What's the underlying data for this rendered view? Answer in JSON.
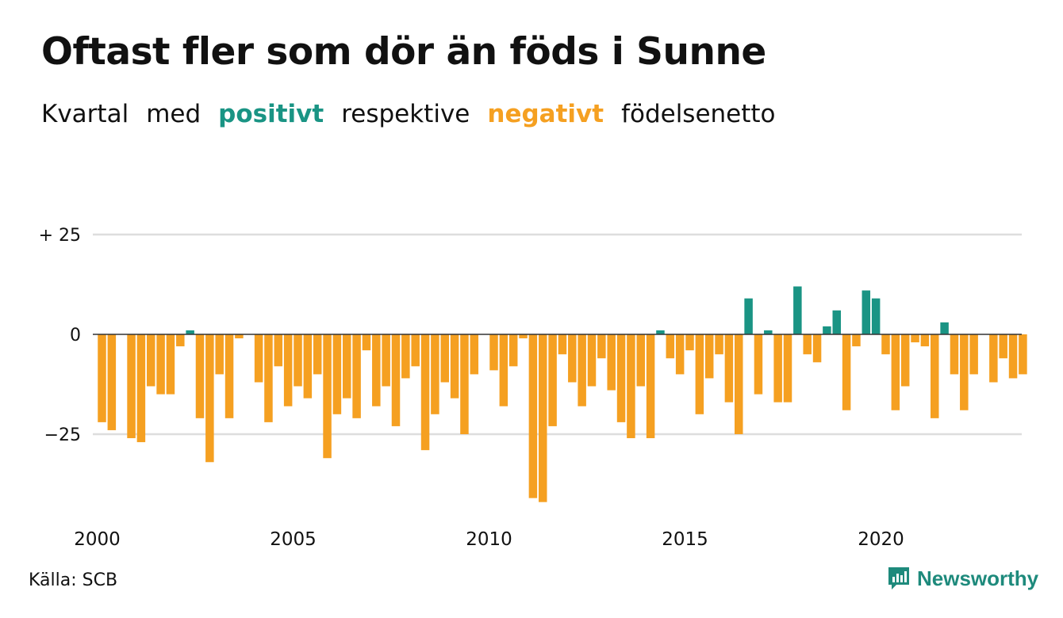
{
  "title": "Oftast fler som dör än föds i Sunne",
  "subtitle": {
    "part1": "Kvartal",
    "part2": "med",
    "positive": "positivt",
    "part3": "respektive",
    "negative": "negativt",
    "part4": "födelsenetto"
  },
  "colors": {
    "positive": "#1a9484",
    "negative": "#f5a021",
    "grid": "#dddddd",
    "zero_line": "#333333"
  },
  "source": "Källa: SCB",
  "brand": {
    "name": "Newsworthy",
    "icon": "newsworthy-logo-icon"
  },
  "chart_data": {
    "type": "bar",
    "start_year": 2000,
    "quarters_per_year": 4,
    "ylim": [
      -42,
      25
    ],
    "yticks": [
      {
        "value": 25,
        "label": "+ 25"
      },
      {
        "value": 0,
        "label": "0"
      },
      {
        "value": -25,
        "label": "−25"
      }
    ],
    "xticks": [
      {
        "year": 2000,
        "label": "2000"
      },
      {
        "year": 2005,
        "label": "2005"
      },
      {
        "year": 2010,
        "label": "2010"
      },
      {
        "year": 2015,
        "label": "2015"
      },
      {
        "year": 2020,
        "label": "2020"
      }
    ],
    "values": [
      -22,
      -24,
      0,
      -26,
      -27,
      -13,
      -15,
      -15,
      -3,
      1,
      -21,
      -32,
      -10,
      -21,
      -1,
      0,
      -12,
      -22,
      -8,
      -18,
      -13,
      -16,
      -10,
      -31,
      -20,
      -16,
      -21,
      -4,
      -18,
      -13,
      -23,
      -11,
      -8,
      -29,
      -20,
      -12,
      -16,
      -25,
      -10,
      0,
      -9,
      -18,
      -8,
      -1,
      -41,
      -42,
      -23,
      -5,
      -12,
      -18,
      -13,
      -6,
      -14,
      -22,
      -26,
      -13,
      -26,
      1,
      -6,
      -10,
      -4,
      -20,
      -11,
      -5,
      -17,
      -25,
      9,
      -15,
      1,
      -17,
      -17,
      12,
      -5,
      -7,
      2,
      6,
      -19,
      -3,
      11,
      9,
      -5,
      -19,
      -13,
      -2,
      -3,
      -21,
      3,
      -10,
      -19,
      -10,
      0,
      -12,
      -6,
      -11,
      -10
    ]
  }
}
